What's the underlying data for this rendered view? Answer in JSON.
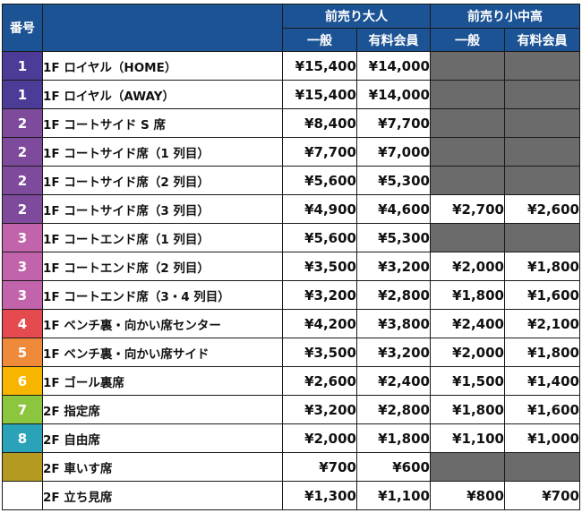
{
  "header": {
    "number": "番号",
    "adult": "前売り大人",
    "student": "前売り小中高",
    "general": "一般",
    "member": "有料会員"
  },
  "rows": [
    {
      "num": "1",
      "color": "#4c3b97",
      "seat": "1F ロイヤル（HOME）",
      "adult_general": "¥15,400",
      "adult_member": "¥14,000",
      "student_general": null,
      "student_member": null
    },
    {
      "num": "1",
      "color": "#4c3b97",
      "seat": "1F ロイヤル（AWAY）",
      "adult_general": "¥15,400",
      "adult_member": "¥14,000",
      "student_general": null,
      "student_member": null
    },
    {
      "num": "2",
      "color": "#7e4a9c",
      "seat": "1F コートサイド S 席",
      "adult_general": "¥8,400",
      "adult_member": "¥7,700",
      "student_general": null,
      "student_member": null
    },
    {
      "num": "2",
      "color": "#7e4a9c",
      "seat": "1F コートサイド席（1 列目）",
      "adult_general": "¥7,700",
      "adult_member": "¥7,000",
      "student_general": null,
      "student_member": null
    },
    {
      "num": "2",
      "color": "#7e4a9c",
      "seat": "1F コートサイド席（2 列目）",
      "adult_general": "¥5,600",
      "adult_member": "¥5,300",
      "student_general": null,
      "student_member": null
    },
    {
      "num": "2",
      "color": "#7e4a9c",
      "seat": "1F コートサイド席（3 列目）",
      "adult_general": "¥4,900",
      "adult_member": "¥4,600",
      "student_general": "¥2,700",
      "student_member": "¥2,600"
    },
    {
      "num": "3",
      "color": "#c264ab",
      "seat": "1F コートエンド席（1 列目）",
      "adult_general": "¥5,600",
      "adult_member": "¥5,300",
      "student_general": null,
      "student_member": null
    },
    {
      "num": "3",
      "color": "#c264ab",
      "seat": "1F コートエンド席（2 列目）",
      "adult_general": "¥3,500",
      "adult_member": "¥3,200",
      "student_general": "¥2,000",
      "student_member": "¥1,800"
    },
    {
      "num": "3",
      "color": "#c264ab",
      "seat": "1F コートエンド席（3・4 列目）",
      "adult_general": "¥3,200",
      "adult_member": "¥2,800",
      "student_general": "¥1,800",
      "student_member": "¥1,600"
    },
    {
      "num": "4",
      "color": "#e54a4f",
      "seat": "1F ベンチ裏・向かい席センター",
      "adult_general": "¥4,200",
      "adult_member": "¥3,800",
      "student_general": "¥2,400",
      "student_member": "¥2,100"
    },
    {
      "num": "5",
      "color": "#ef8a3b",
      "seat": "1F ベンチ裏・向かい席サイド",
      "adult_general": "¥3,500",
      "adult_member": "¥3,200",
      "student_general": "¥2,000",
      "student_member": "¥1,800"
    },
    {
      "num": "6",
      "color": "#f7b500",
      "seat": "1F ゴール裏席",
      "adult_general": "¥2,600",
      "adult_member": "¥2,400",
      "student_general": "¥1,500",
      "student_member": "¥1,400"
    },
    {
      "num": "7",
      "color": "#8cc63e",
      "seat": "2F 指定席",
      "adult_general": "¥3,200",
      "adult_member": "¥2,800",
      "student_general": "¥1,800",
      "student_member": "¥1,600"
    },
    {
      "num": "8",
      "color": "#2aa3b8",
      "seat": "2F 自由席",
      "adult_general": "¥2,000",
      "adult_member": "¥1,800",
      "student_general": "¥1,100",
      "student_member": "¥1,000"
    },
    {
      "num": "",
      "color": "#b59a22",
      "seat": "2F 車いす席",
      "adult_general": "¥700",
      "adult_member": "¥600",
      "student_general": null,
      "student_member": null
    },
    {
      "num": "",
      "color": "#ffffff",
      "seat": "2F 立ち見席",
      "adult_general": "¥1,300",
      "adult_member": "¥1,100",
      "student_general": "¥800",
      "student_member": "¥700"
    }
  ]
}
